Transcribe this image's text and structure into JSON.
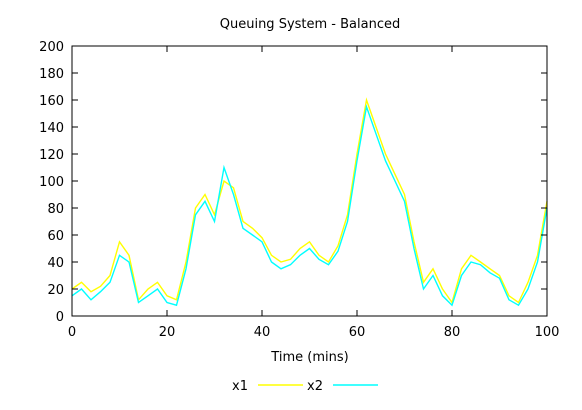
{
  "chart_data": {
    "type": "line",
    "title": "Queuing System - Balanced",
    "xlabel": "Time (mins)",
    "ylabel": "",
    "xlim": [
      0,
      100
    ],
    "ylim": [
      0,
      200
    ],
    "xticks": [
      0,
      20,
      40,
      60,
      80,
      100
    ],
    "yticks": [
      0,
      20,
      40,
      60,
      80,
      100,
      120,
      140,
      160,
      180,
      200
    ],
    "grid": false,
    "legend_position": "bottom-center",
    "x": [
      0,
      2,
      4,
      6,
      8,
      10,
      12,
      14,
      16,
      18,
      20,
      22,
      24,
      26,
      28,
      30,
      32,
      34,
      36,
      38,
      40,
      42,
      44,
      46,
      48,
      50,
      52,
      54,
      56,
      58,
      60,
      62,
      64,
      66,
      68,
      70,
      72,
      74,
      76,
      78,
      80,
      82,
      84,
      86,
      88,
      90,
      92,
      94,
      96,
      98,
      100
    ],
    "series": [
      {
        "name": "x1",
        "color": "#ffff00",
        "values": [
          20,
          25,
          18,
          22,
          30,
          55,
          45,
          12,
          20,
          25,
          15,
          12,
          40,
          80,
          90,
          75,
          100,
          95,
          70,
          65,
          58,
          45,
          40,
          42,
          50,
          55,
          45,
          40,
          52,
          75,
          120,
          160,
          140,
          120,
          105,
          90,
          55,
          25,
          35,
          20,
          10,
          35,
          45,
          40,
          35,
          30,
          15,
          10,
          25,
          45,
          85
        ]
      },
      {
        "name": "x2",
        "color": "#00ffff",
        "values": [
          15,
          20,
          12,
          18,
          25,
          45,
          40,
          10,
          15,
          20,
          10,
          8,
          35,
          75,
          85,
          70,
          110,
          90,
          65,
          60,
          55,
          40,
          35,
          38,
          45,
          50,
          42,
          38,
          48,
          70,
          115,
          155,
          135,
          115,
          100,
          85,
          50,
          20,
          30,
          15,
          8,
          30,
          40,
          38,
          32,
          28,
          12,
          8,
          20,
          40,
          80
        ]
      }
    ]
  }
}
